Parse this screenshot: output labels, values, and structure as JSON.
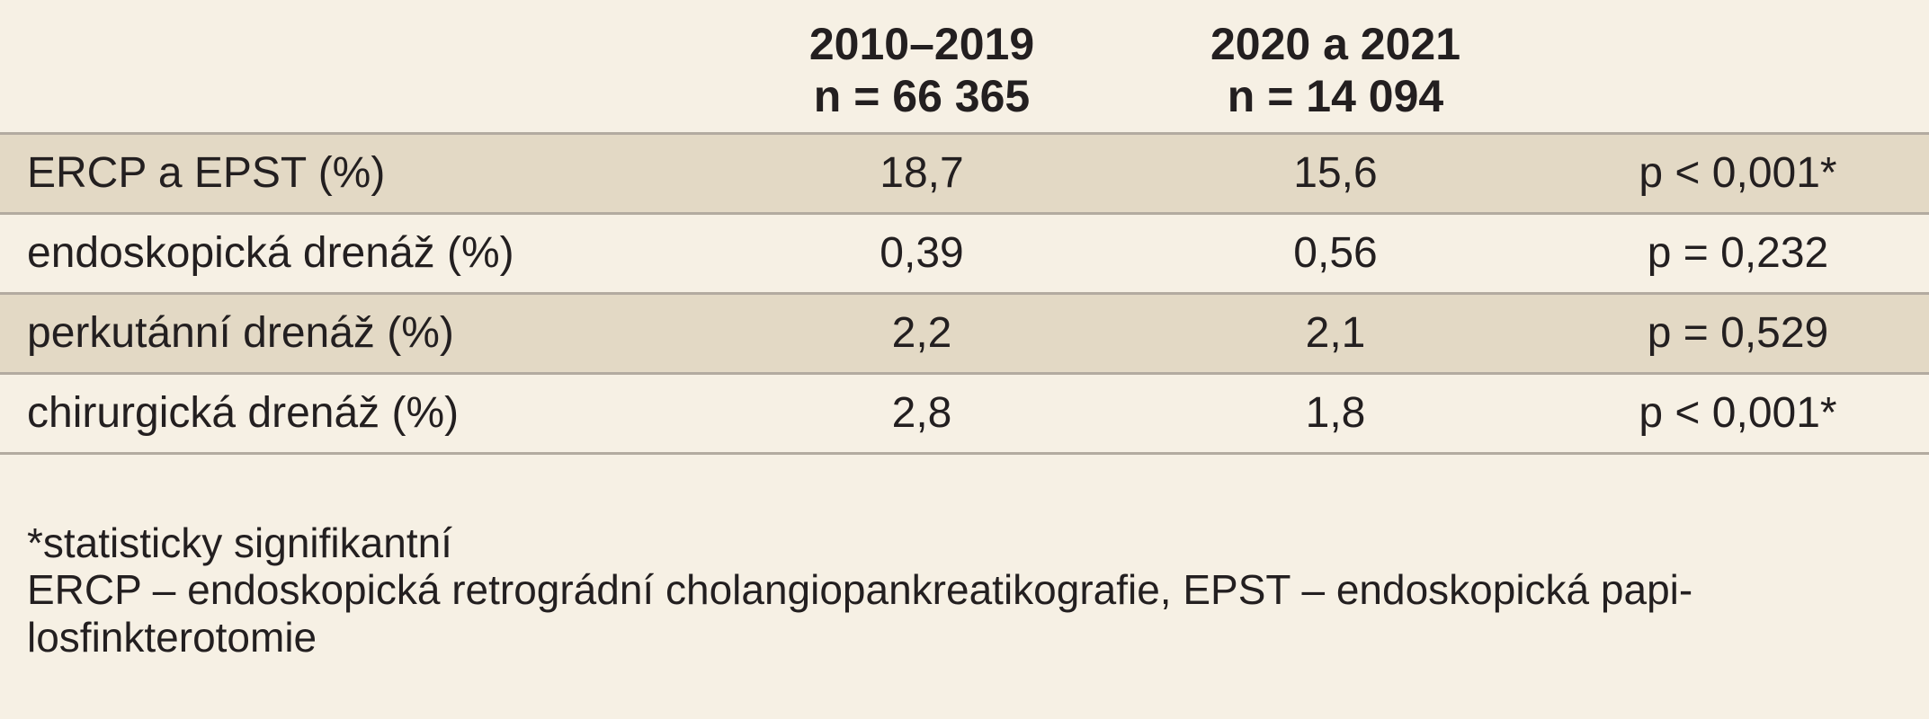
{
  "table": {
    "columns": [
      {
        "period": "",
        "n": ""
      },
      {
        "period": "2010–2019",
        "n": "n = 66 365"
      },
      {
        "period": "2020 a 2021",
        "n": "n = 14 094"
      },
      {
        "period": "",
        "n": ""
      }
    ],
    "rows": [
      {
        "label": "ERCP a EPST (%)",
        "v1": "18,7",
        "v2": "15,6",
        "p": "p < 0,001*"
      },
      {
        "label": "endoskopická drenáž (%)",
        "v1": "0,39",
        "v2": "0,56",
        "p": "p = 0,232"
      },
      {
        "label": "perkutánní drenáž (%)",
        "v1": "2,2",
        "v2": "2,1",
        "p": "p = 0,529"
      },
      {
        "label": "chirurgická drenáž (%)",
        "v1": "2,8",
        "v2": "1,8",
        "p": "p < 0,001*"
      }
    ]
  },
  "notes": {
    "significance": "*statisticky signifikantní",
    "abbrev_line1": "ERCP – endoskopická retrográdní cholangiopankreatikografie, EPST – endoskopická papi-",
    "abbrev_line2": "losfinkterotomie"
  },
  "colors": {
    "background": "#f6f0e4",
    "shaded_row": "#e3d9c5",
    "rule": "#b3aba0",
    "text": "#231f20"
  }
}
